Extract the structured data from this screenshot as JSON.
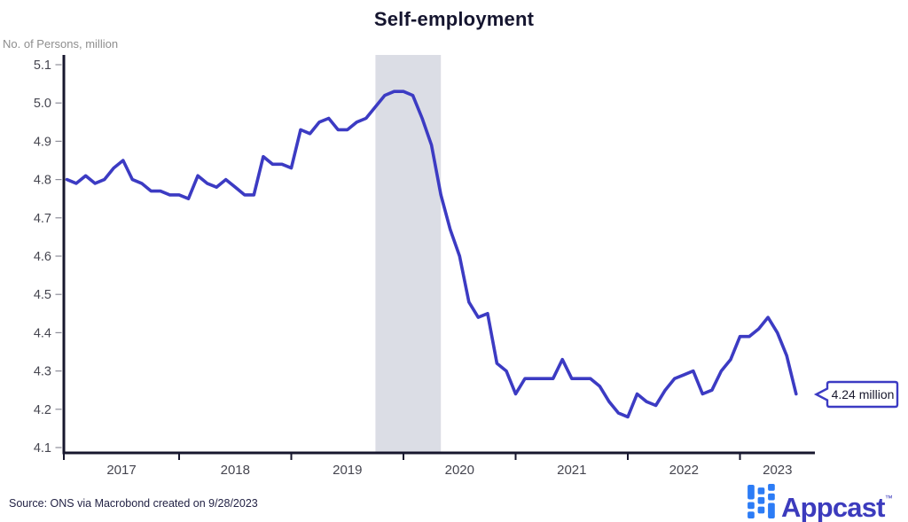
{
  "title": "Self-employment",
  "y_axis_unit": "No. of Persons, million",
  "source_note": "Source: ONS via Macrobond created on 9/28/2023",
  "callout": {
    "label": "4.24 million"
  },
  "branding": {
    "name": "Appcast",
    "trademark": "™"
  },
  "colors": {
    "line": "#3c3bc3",
    "recession_band": "#dbdde5",
    "axis": "#17172e",
    "logo_square": "#2c7cf6",
    "logo_text": "#3c3bbd"
  },
  "chart_data": {
    "type": "line",
    "title": "Self-employment",
    "ylabel": "No. of Persons, million",
    "xlabel": "",
    "grid": false,
    "legend": false,
    "frequency": "monthly",
    "x_start": {
      "year": 2017,
      "month": 1
    },
    "x_end": {
      "year": 2023,
      "month": 7
    },
    "ylim": [
      4.1,
      5.1
    ],
    "yticks": [
      4.1,
      4.2,
      4.3,
      4.4,
      4.5,
      4.6,
      4.7,
      4.8,
      4.9,
      5.0,
      5.1
    ],
    "x_year_labels": [
      "2017",
      "2018",
      "2019",
      "2020",
      "2021",
      "2022",
      "2023"
    ],
    "shaded_band": {
      "label": "recession-band",
      "from_month_index": 33,
      "to_month_index": 40
    },
    "last_value_label": "4.24 million",
    "values": [
      4.8,
      4.79,
      4.81,
      4.79,
      4.8,
      4.83,
      4.85,
      4.8,
      4.79,
      4.77,
      4.77,
      4.76,
      4.76,
      4.75,
      4.81,
      4.79,
      4.78,
      4.8,
      4.78,
      4.76,
      4.76,
      4.86,
      4.84,
      4.84,
      4.83,
      4.93,
      4.92,
      4.95,
      4.96,
      4.93,
      4.93,
      4.95,
      4.96,
      4.99,
      5.02,
      5.03,
      5.03,
      5.02,
      4.96,
      4.89,
      4.76,
      4.67,
      4.6,
      4.48,
      4.44,
      4.45,
      4.32,
      4.3,
      4.24,
      4.28,
      4.28,
      4.28,
      4.28,
      4.33,
      4.28,
      4.28,
      4.28,
      4.26,
      4.22,
      4.19,
      4.18,
      4.24,
      4.22,
      4.21,
      4.25,
      4.28,
      4.29,
      4.3,
      4.24,
      4.25,
      4.3,
      4.33,
      4.39,
      4.39,
      4.41,
      4.44,
      4.4,
      4.34,
      4.24
    ]
  }
}
